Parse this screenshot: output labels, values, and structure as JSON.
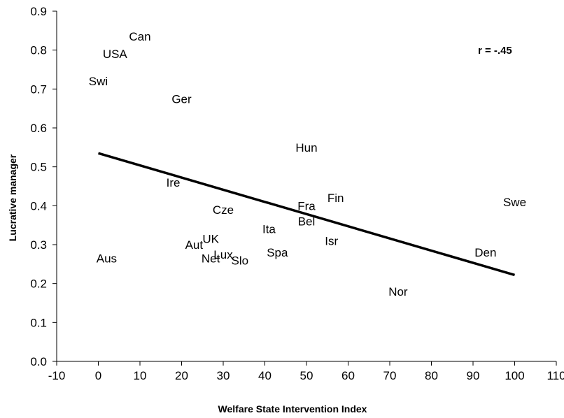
{
  "chart_data": {
    "type": "scatter",
    "title": "",
    "xlabel": "Welfare State Intervention Index",
    "ylabel": "Lucrative manager",
    "xlim": [
      -10,
      110
    ],
    "ylim": [
      0.0,
      0.9
    ],
    "x_ticks": [
      "-10",
      "0",
      "10",
      "20",
      "30",
      "40",
      "50",
      "60",
      "70",
      "80",
      "90",
      "100",
      "110"
    ],
    "y_ticks": [
      "0.0",
      "0.1",
      "0.2",
      "0.3",
      "0.4",
      "0.5",
      "0.6",
      "0.7",
      "0.8",
      "0.9"
    ],
    "grid": false,
    "legend": "none",
    "annotation": "r = -.45",
    "points": [
      {
        "label": "Can",
        "x": 10,
        "y": 0.835
      },
      {
        "label": "USA",
        "x": 4,
        "y": 0.79
      },
      {
        "label": "Swi",
        "x": 0,
        "y": 0.72
      },
      {
        "label": "Ger",
        "x": 20,
        "y": 0.675
      },
      {
        "label": "Hun",
        "x": 50,
        "y": 0.55
      },
      {
        "label": "Ire",
        "x": 18,
        "y": 0.46
      },
      {
        "label": "Fin",
        "x": 57,
        "y": 0.42
      },
      {
        "label": "Swe",
        "x": 100,
        "y": 0.41
      },
      {
        "label": "Fra",
        "x": 50,
        "y": 0.4
      },
      {
        "label": "Cze",
        "x": 30,
        "y": 0.39
      },
      {
        "label": "Bel",
        "x": 50,
        "y": 0.36
      },
      {
        "label": "Ita",
        "x": 41,
        "y": 0.34
      },
      {
        "label": "UK",
        "x": 27,
        "y": 0.315
      },
      {
        "label": "Isr",
        "x": 56,
        "y": 0.31
      },
      {
        "label": "Aut",
        "x": 23,
        "y": 0.3
      },
      {
        "label": "Den",
        "x": 93,
        "y": 0.28
      },
      {
        "label": "Spa",
        "x": 43,
        "y": 0.28
      },
      {
        "label": "Lux",
        "x": 30,
        "y": 0.275
      },
      {
        "label": "Aus",
        "x": 2,
        "y": 0.265
      },
      {
        "label": "Net",
        "x": 27,
        "y": 0.265
      },
      {
        "label": "Slo",
        "x": 34,
        "y": 0.26
      },
      {
        "label": "Nor",
        "x": 72,
        "y": 0.18
      }
    ],
    "trendline": {
      "x": [
        0,
        100
      ],
      "y": [
        0.535,
        0.222
      ]
    }
  }
}
